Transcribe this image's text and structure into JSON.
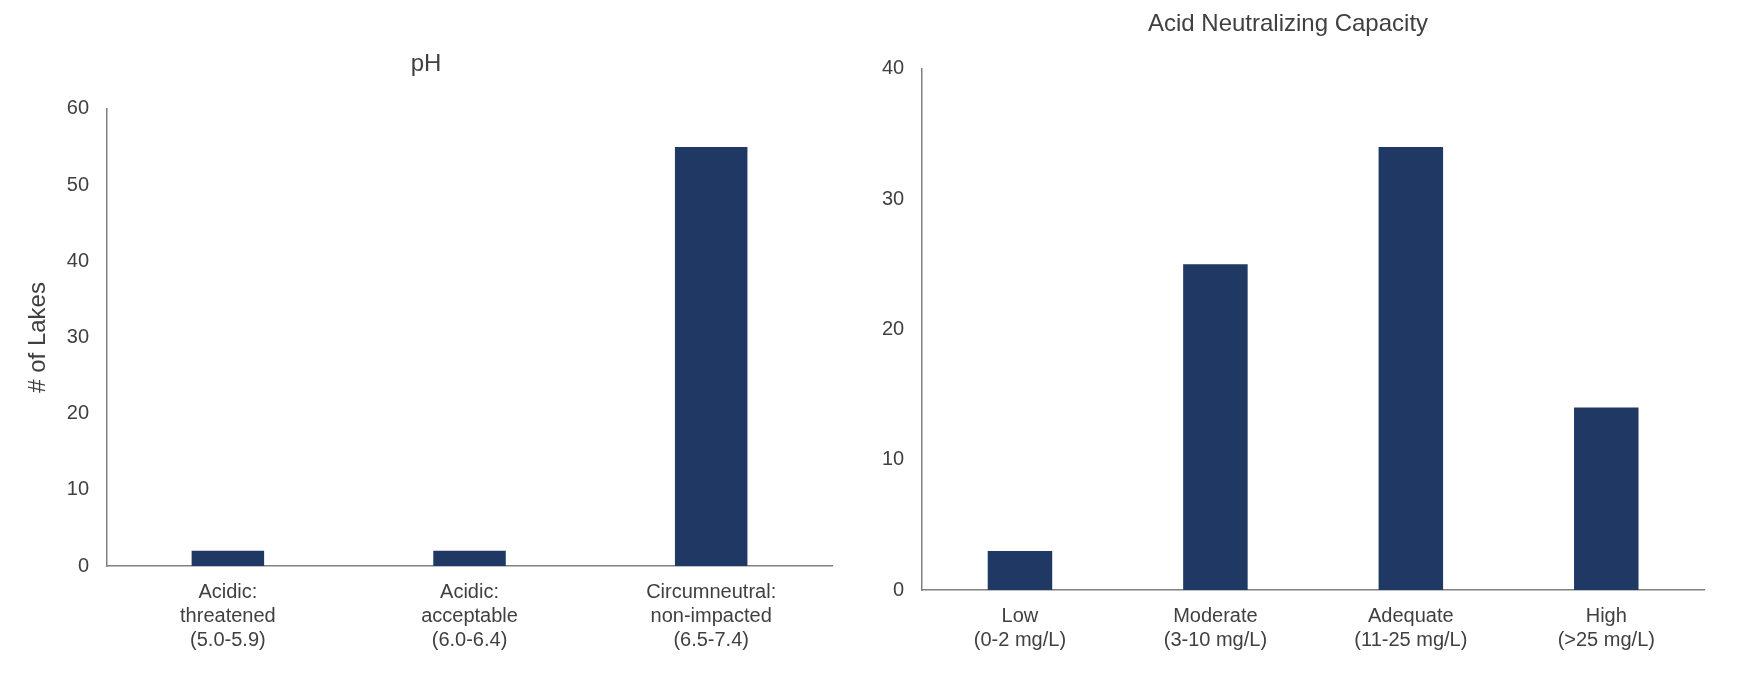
{
  "chart_data": [
    {
      "type": "bar",
      "title": "pH",
      "ylabel": "# of Lakes",
      "categories": [
        "Acidic:\nthreatened\n(5.0-5.9)",
        "Acidic:\nacceptable\n(6.0-6.4)",
        "Circumneutral:\nnon-impacted\n(6.5-7.4)"
      ],
      "values": [
        2,
        2,
        55
      ],
      "color": "#1f3864",
      "ylim": [
        0,
        60
      ],
      "yticks": [
        0,
        10,
        20,
        30,
        40,
        50,
        60
      ]
    },
    {
      "type": "bar",
      "title": "Acid Neutralizing Capacity",
      "categories": [
        "Low\n(0-2 mg/L)",
        "Moderate\n(3-10 mg/L)",
        "Adequate\n(11-25 mg/L)",
        "High\n(>25 mg/L)"
      ],
      "values": [
        3,
        25,
        34,
        14
      ],
      "color": "#1f3864",
      "ylim": [
        0,
        40
      ],
      "yticks": [
        0,
        10,
        20,
        30,
        40
      ]
    }
  ]
}
